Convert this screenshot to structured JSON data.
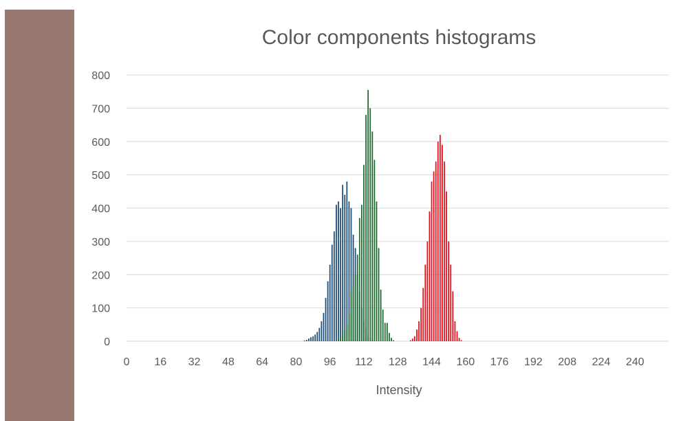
{
  "sample_swatch": {
    "color": "#9a7872"
  },
  "chart_data": {
    "type": "bar",
    "title": "Color components histograms",
    "xlabel": "Intensity",
    "ylabel": "",
    "xlim": [
      0,
      255
    ],
    "ylim": [
      0,
      800
    ],
    "x_ticks": [
      0,
      16,
      32,
      48,
      64,
      80,
      96,
      112,
      128,
      144,
      160,
      176,
      192,
      208,
      224,
      240
    ],
    "y_ticks": [
      0,
      100,
      200,
      300,
      400,
      500,
      600,
      700,
      800
    ],
    "grid": true,
    "legend": "none",
    "series": [
      {
        "color": "#1f4e79",
        "x": [
          84,
          85,
          86,
          87,
          88,
          89,
          90,
          91,
          92,
          93,
          94,
          95,
          96,
          97,
          98,
          99,
          100,
          101,
          102,
          103,
          104,
          105,
          106,
          107,
          108,
          109,
          110,
          111,
          112,
          113,
          114,
          115,
          116,
          117,
          118
        ],
        "values": [
          2,
          4,
          8,
          12,
          15,
          20,
          28,
          40,
          60,
          85,
          130,
          180,
          230,
          290,
          330,
          410,
          420,
          400,
          470,
          440,
          480,
          420,
          400,
          320,
          280,
          200,
          150,
          100,
          60,
          40,
          20,
          10,
          5,
          3,
          1
        ]
      },
      {
        "color": "#1e6b30",
        "x": [
          100,
          101,
          102,
          103,
          104,
          105,
          106,
          107,
          108,
          109,
          110,
          111,
          112,
          113,
          114,
          115,
          116,
          117,
          118,
          119,
          120,
          121,
          122,
          123,
          124,
          125,
          126
        ],
        "values": [
          5,
          10,
          20,
          35,
          50,
          80,
          150,
          170,
          200,
          260,
          370,
          410,
          530,
          680,
          755,
          700,
          630,
          545,
          420,
          280,
          155,
          95,
          55,
          55,
          25,
          10,
          3
        ]
      },
      {
        "color": "#e8101c",
        "x": [
          134,
          135,
          136,
          137,
          138,
          139,
          140,
          141,
          142,
          143,
          144,
          145,
          146,
          147,
          148,
          149,
          150,
          151,
          152,
          153,
          154,
          155,
          156,
          157,
          158
        ],
        "values": [
          3,
          8,
          15,
          35,
          60,
          100,
          160,
          230,
          300,
          390,
          480,
          510,
          540,
          600,
          620,
          590,
          540,
          450,
          300,
          230,
          150,
          60,
          30,
          10,
          3
        ]
      }
    ]
  }
}
